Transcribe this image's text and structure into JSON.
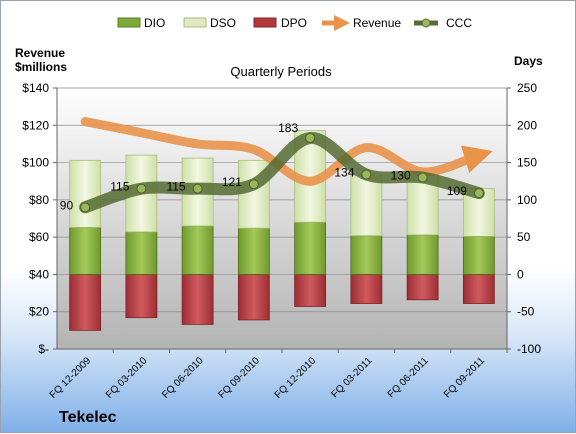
{
  "chart_data": {
    "type": "bar",
    "title": "Quarterly Periods",
    "company": "Tekelec",
    "left_axis_label_line1": "Revenue",
    "left_axis_label_line2": "$millions",
    "right_axis_label": "Days",
    "categories": [
      "FQ 12-2009",
      "FQ 03-2010",
      "FQ 06-2010",
      "FQ 09-2010",
      "FQ 12-2010",
      "FQ 03-2011",
      "FQ 06-2011",
      "FQ 09-2011"
    ],
    "left_ylim": [
      0,
      140
    ],
    "left_ticks": [
      0,
      20,
      40,
      60,
      80,
      100,
      120,
      140
    ],
    "left_tick_labels": [
      "$-",
      "$20",
      "$40",
      "$60",
      "$80",
      "$100",
      "$120",
      "$140"
    ],
    "right_ylim": [
      -100,
      250
    ],
    "right_ticks": [
      -100,
      -50,
      0,
      50,
      100,
      150,
      200,
      250
    ],
    "series": [
      {
        "name": "DIO",
        "axis": "days",
        "color": "#7fa83a",
        "values": [
          63,
          57,
          65,
          62,
          70,
          52,
          53,
          51
        ]
      },
      {
        "name": "DSO",
        "axis": "days",
        "color": "#dfeac3",
        "values": [
          90,
          103,
          91,
          91,
          123,
          81,
          82,
          64
        ]
      },
      {
        "name": "DPO",
        "axis": "days",
        "color": "#b3383d",
        "values": [
          -75,
          -58,
          -67,
          -61,
          -43,
          -39,
          -34,
          -39
        ]
      },
      {
        "name": "Revenue",
        "axis": "revenue",
        "color": "#e8924a",
        "values": [
          122,
          116,
          110,
          107,
          90,
          108,
          95,
          104
        ]
      },
      {
        "name": "CCC",
        "axis": "days",
        "color": "#556b32",
        "values": [
          90,
          115,
          115,
          121,
          183,
          134,
          130,
          109
        ]
      }
    ],
    "ccc_labels": [
      "90",
      "115",
      "115",
      "121",
      "183",
      "134",
      "130",
      "109"
    ],
    "grid": true,
    "legend_position": "top"
  }
}
